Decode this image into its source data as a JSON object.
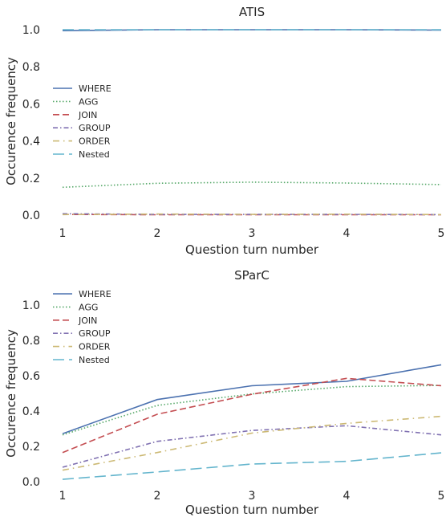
{
  "chart_data": [
    {
      "type": "line",
      "title": "ATIS",
      "xlabel": "Question turn number",
      "ylabel": "Occurence frequency",
      "x": [
        1,
        2,
        3,
        4,
        5
      ],
      "ylim": [
        0,
        1.0
      ],
      "yticks": [
        "0.0",
        "0.2",
        "0.4",
        "0.6",
        "0.8",
        "1.0"
      ],
      "xticks": [
        "1",
        "2",
        "3",
        "4",
        "5"
      ],
      "legend_position": "center-left",
      "series": [
        {
          "name": "WHERE",
          "values": [
            0.995,
            1.0,
            1.0,
            1.0,
            0.998
          ],
          "color": "#4c72b0",
          "dash": ""
        },
        {
          "name": "AGG",
          "values": [
            0.15,
            0.172,
            0.178,
            0.173,
            0.165
          ],
          "color": "#55a868",
          "dash": "1.5,2.5"
        },
        {
          "name": "JOIN",
          "values": [
            0.004,
            0.002,
            0.002,
            0.002,
            0.002
          ],
          "color": "#c44e52",
          "dash": "8,4"
        },
        {
          "name": "GROUP",
          "values": [
            0.008,
            0.004,
            0.004,
            0.004,
            0.003
          ],
          "color": "#8172b2",
          "dash": "6,3,1.5,3"
        },
        {
          "name": "ORDER",
          "values": [
            0.003,
            0.006,
            0.004,
            0.005,
            0.003
          ],
          "color": "#ccb974",
          "dash": "8,5,1.5,5"
        },
        {
          "name": "Nested",
          "values": [
            1.0,
            1.0,
            1.0,
            1.0,
            1.0
          ],
          "color": "#64b5cd",
          "dash": "14,6"
        }
      ]
    },
    {
      "type": "line",
      "title": "SParC",
      "xlabel": "Question turn number",
      "ylabel": "Occurence frequency",
      "x": [
        1,
        2,
        3,
        4,
        5
      ],
      "ylim": [
        0,
        1.0
      ],
      "yticks": [
        "0.0",
        "0.2",
        "0.4",
        "0.6",
        "0.8",
        "1.0"
      ],
      "xticks": [
        "1",
        "2",
        "3",
        "4",
        "5"
      ],
      "legend_position": "upper-left",
      "series": [
        {
          "name": "WHERE",
          "values": [
            0.272,
            0.465,
            0.543,
            0.568,
            0.662
          ],
          "color": "#4c72b0",
          "dash": ""
        },
        {
          "name": "AGG",
          "values": [
            0.265,
            0.432,
            0.497,
            0.538,
            0.545
          ],
          "color": "#55a868",
          "dash": "1.5,2.5"
        },
        {
          "name": "JOIN",
          "values": [
            0.165,
            0.382,
            0.495,
            0.585,
            0.543
          ],
          "color": "#c44e52",
          "dash": "8,4"
        },
        {
          "name": "GROUP",
          "values": [
            0.082,
            0.228,
            0.29,
            0.317,
            0.265
          ],
          "color": "#8172b2",
          "dash": "6,3,1.5,3"
        },
        {
          "name": "ORDER",
          "values": [
            0.065,
            0.165,
            0.275,
            0.33,
            0.37
          ],
          "color": "#ccb974",
          "dash": "8,5,1.5,5"
        },
        {
          "name": "Nested",
          "values": [
            0.013,
            0.055,
            0.1,
            0.115,
            0.163
          ],
          "color": "#64b5cd",
          "dash": "14,6"
        }
      ]
    }
  ]
}
